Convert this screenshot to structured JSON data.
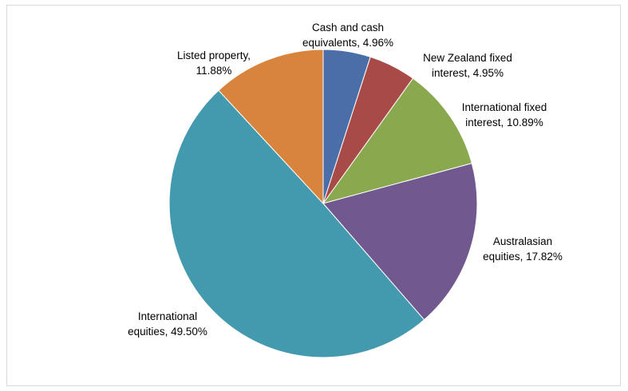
{
  "chart_data": {
    "type": "pie",
    "title": "",
    "legend": "none",
    "categories": [
      "Cash and cash equivalents",
      "New Zealand fixed interest",
      "International fixed interest",
      "Australasian equities",
      "International equities",
      "Listed property"
    ],
    "values": [
      4.96,
      4.95,
      10.89,
      17.82,
      49.5,
      11.88
    ],
    "colors": [
      "#4a6ea8",
      "#a84a48",
      "#8aa84e",
      "#71588f",
      "#4399ad",
      "#d9843c"
    ],
    "data_labels": [
      [
        "Cash and cash",
        "equivalents, 4.96%"
      ],
      [
        "New Zealand fixed",
        "interest, 4.95%"
      ],
      [
        "International fixed",
        "interest, 10.89%"
      ],
      [
        "Australasian",
        "equities, 17.82%"
      ],
      [
        "International",
        "equities, 49.50%"
      ],
      [
        "Listed property,",
        "11.88%"
      ]
    ]
  }
}
